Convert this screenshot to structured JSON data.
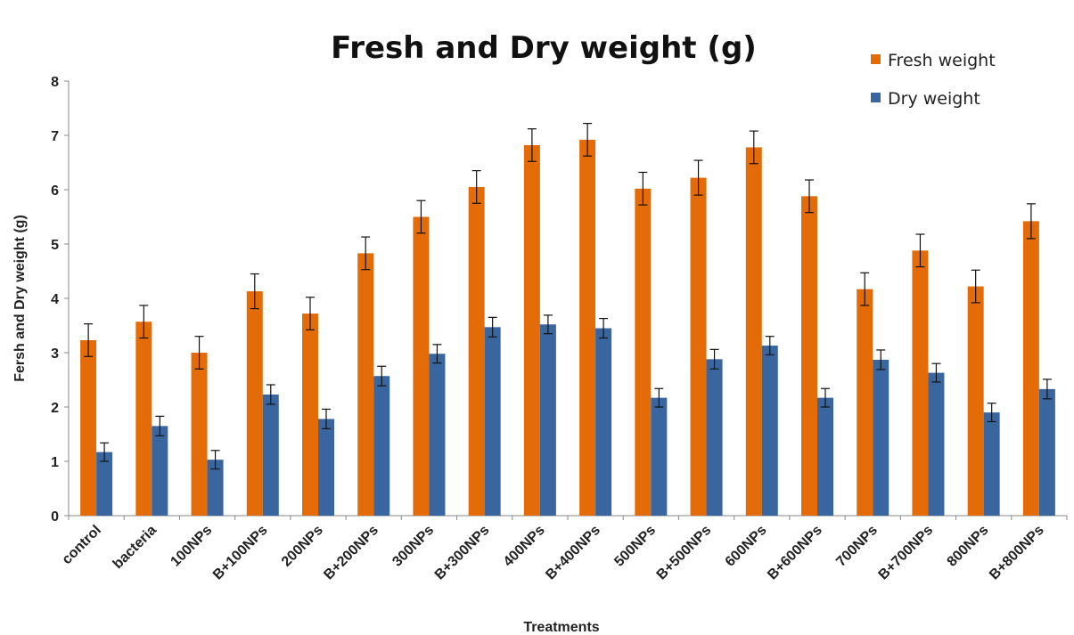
{
  "chart_data": {
    "type": "bar",
    "title": "Fresh and Dry weight (g)",
    "xlabel": "Treatments",
    "ylabel": "Fersh and Dry weight (g)",
    "ylim": [
      0,
      8
    ],
    "yticks": [
      "0",
      "1",
      "2",
      "3",
      "4",
      "5",
      "6",
      "7",
      "8"
    ],
    "legend_position": "top-right",
    "grid": false,
    "categories": [
      "control",
      "bacteria",
      "100NPs",
      "B+100NPs",
      "200NPs",
      "B+200NPs",
      "300NPs",
      "B+300NPs",
      "400NPs",
      "B+400NPs",
      "500NPs",
      "B+500NPs",
      "600NPs",
      "B+600NPs",
      "700NPs",
      "B+700NPs",
      "800NPs",
      "B+800NPs"
    ],
    "series": [
      {
        "name": "Fresh weight",
        "color": "#E36C09",
        "values": [
          3.23,
          3.57,
          3.0,
          4.13,
          3.72,
          4.83,
          5.5,
          6.05,
          6.82,
          6.92,
          6.02,
          6.22,
          6.78,
          5.88,
          4.17,
          4.88,
          4.22,
          5.42
        ],
        "errors": [
          0.3,
          0.3,
          0.3,
          0.32,
          0.3,
          0.3,
          0.3,
          0.3,
          0.3,
          0.3,
          0.3,
          0.32,
          0.3,
          0.3,
          0.3,
          0.3,
          0.3,
          0.32
        ]
      },
      {
        "name": "Dry weight",
        "color": "#3A66A0",
        "values": [
          1.17,
          1.65,
          1.03,
          2.23,
          1.78,
          2.57,
          2.98,
          3.47,
          3.52,
          3.45,
          2.17,
          2.88,
          3.13,
          2.17,
          2.87,
          2.63,
          1.9,
          2.33
        ],
        "errors": [
          0.17,
          0.18,
          0.17,
          0.18,
          0.18,
          0.18,
          0.17,
          0.18,
          0.17,
          0.18,
          0.17,
          0.18,
          0.17,
          0.17,
          0.18,
          0.17,
          0.17,
          0.18
        ]
      }
    ]
  }
}
